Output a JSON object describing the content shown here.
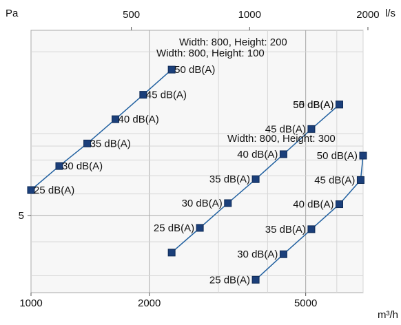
{
  "chart_data": {
    "type": "line",
    "x_scale": "log",
    "y_scale": "log",
    "x_unit": "m³/h",
    "x2_unit": "l/s",
    "y_unit": "Pa",
    "xlim": [
      1000,
      7000
    ],
    "ylim": [
      2.6,
      24
    ],
    "x_ticks": [
      1000,
      2000,
      5000
    ],
    "x2_ticks": [
      500,
      1000,
      2000
    ],
    "y_ticks": [
      5
    ],
    "grid": true,
    "series": [
      {
        "name": "Width: 800, Height: 100",
        "points": [
          {
            "x": 1000,
            "y": 6.2,
            "label": "25 dB(A)"
          },
          {
            "x": 1180,
            "y": 7.6,
            "label": "30 dB(A)"
          },
          {
            "x": 1390,
            "y": 9.2,
            "label": "35 dB(A)"
          },
          {
            "x": 1640,
            "y": 11.3,
            "label": "40 dB(A)"
          },
          {
            "x": 1930,
            "y": 13.9,
            "label": "45 dB(A)"
          },
          {
            "x": 2280,
            "y": 17.2,
            "label": "50 dB(A)"
          }
        ]
      },
      {
        "name": "Width: 800, Height: 200",
        "points": [
          {
            "x": 2280,
            "y": 3.65,
            "label": ""
          },
          {
            "x": 2690,
            "y": 4.5,
            "label": "25 dB(A)"
          },
          {
            "x": 3170,
            "y": 5.55,
            "label": "30 dB(A)"
          },
          {
            "x": 3730,
            "y": 6.8,
            "label": "35 dB(A)"
          },
          {
            "x": 4390,
            "y": 8.4,
            "label": "40 dB(A)"
          },
          {
            "x": 5170,
            "y": 10.4,
            "label": "45 dB(A)"
          },
          {
            "x": 6090,
            "y": 12.8,
            "label": "50 dB(A)"
          },
          {
            "x": 6090,
            "y": 12.8,
            "label": "55 dB(A)"
          }
        ]
      },
      {
        "name": "Width: 800, Height: 300",
        "points": [
          {
            "x": 3730,
            "y": 2.9,
            "label": "25 dB(A)"
          },
          {
            "x": 4390,
            "y": 3.6,
            "label": "30 dB(A)"
          },
          {
            "x": 5170,
            "y": 4.45,
            "label": "35 dB(A)"
          },
          {
            "x": 6090,
            "y": 5.5,
            "label": "40 dB(A)"
          },
          {
            "x": 6900,
            "y": 6.75,
            "label": "45 dB(A)"
          },
          {
            "x": 7000,
            "y": 8.3,
            "label": "50 dB(A)"
          }
        ]
      }
    ],
    "colors": {
      "line": "#2060a0",
      "marker": "#1b3f7a",
      "grid_major": "#a8a8a8",
      "grid_minor": "#d6d6d6",
      "plot_bg": "#f7f7f7"
    }
  }
}
